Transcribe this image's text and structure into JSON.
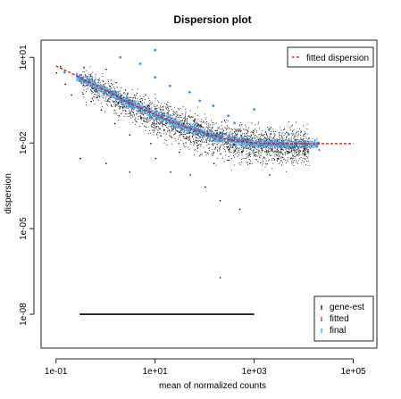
{
  "chart_data": {
    "type": "scatter",
    "title": "Dispersion plot",
    "xlabel": "mean of normalized counts",
    "ylabel": "dispersion",
    "x_scale": "log10",
    "y_scale": "log10",
    "xlim": [
      0.05,
      300000
    ],
    "ylim": [
      6.5e-10,
      40
    ],
    "x_ticks": [
      {
        "value": 0.1,
        "label": "1e-01"
      },
      {
        "value": 10,
        "label": "1e+01"
      },
      {
        "value": 1000,
        "label": "1e+03"
      },
      {
        "value": 100000,
        "label": "1e+05"
      }
    ],
    "y_ticks": [
      {
        "value": 10,
        "label": "1e+01"
      },
      {
        "value": 0.01,
        "label": "1e-02"
      },
      {
        "value": 1e-05,
        "label": "1e-05"
      },
      {
        "value": 1e-08,
        "label": "1e-08"
      }
    ],
    "colors": {
      "gene_est": "#000000",
      "fitted": "#e0141e",
      "final": "#3b94e0"
    },
    "series": [
      {
        "name": "fitted dispersion",
        "style": "line",
        "points": [
          [
            0.1,
            5.0
          ],
          [
            0.3,
            2.0
          ],
          [
            1,
            0.7
          ],
          [
            3,
            0.25
          ],
          [
            10,
            0.1
          ],
          [
            30,
            0.045
          ],
          [
            100,
            0.022
          ],
          [
            300,
            0.013
          ],
          [
            1000,
            0.01
          ],
          [
            3000,
            0.0095
          ],
          [
            10000,
            0.0095
          ],
          [
            50000,
            0.0095
          ],
          [
            100000,
            0.0095
          ]
        ]
      },
      {
        "name": "gene-est",
        "style": "points",
        "points": [
          [
            0.1,
            3.0
          ],
          [
            0.12,
            5.0
          ],
          [
            0.15,
            1.2
          ],
          [
            0.2,
            0.5
          ],
          [
            0.3,
            2.5
          ],
          [
            0.5,
            0.3
          ],
          [
            0.8,
            0.15
          ],
          [
            1,
            4.0
          ],
          [
            1.5,
            0.05
          ],
          [
            2,
            0.5
          ],
          [
            3,
            0.02
          ],
          [
            5,
            0.08
          ],
          [
            5,
            0.3
          ],
          [
            8,
            0.01
          ],
          [
            10,
            0.003
          ],
          [
            15,
            0.03
          ],
          [
            20,
            0.001
          ],
          [
            30,
            0.005
          ],
          [
            50,
            0.0008
          ],
          [
            70,
            0.02
          ],
          [
            100,
            0.0003
          ],
          [
            100,
            0.005
          ],
          [
            150,
            0.002
          ],
          [
            200,
            0.0001
          ],
          [
            300,
            0.006
          ],
          [
            500,
            5e-05
          ],
          [
            800,
            0.002
          ],
          [
            1000,
            0.004
          ],
          [
            2000,
            0.0008
          ],
          [
            3000,
            0.003
          ],
          [
            5000,
            0.005
          ],
          [
            10000,
            0.004
          ],
          [
            20000,
            0.006
          ],
          [
            200,
            2e-07
          ],
          [
            0.3,
            0.003
          ],
          [
            1,
            0.002
          ],
          [
            3,
            0.001
          ]
        ],
        "floor_band": {
          "y": 1e-08,
          "x_range": [
            0.3,
            1000
          ]
        }
      },
      {
        "name": "final",
        "style": "points",
        "points": [
          [
            0.15,
            3.0
          ],
          [
            0.3,
            1.5
          ],
          [
            1,
            0.6
          ],
          [
            2,
            10
          ],
          [
            3,
            0.2
          ],
          [
            5,
            6
          ],
          [
            8,
            0.08
          ],
          [
            10,
            18
          ],
          [
            10,
            2
          ],
          [
            20,
            1
          ],
          [
            30,
            0.04
          ],
          [
            50,
            0.6
          ],
          [
            80,
            0.3
          ],
          [
            100,
            0.02
          ],
          [
            150,
            0.2
          ],
          [
            200,
            0.015
          ],
          [
            300,
            0.09
          ],
          [
            400,
            0.05
          ],
          [
            600,
            0.011
          ],
          [
            1000,
            0.15
          ],
          [
            1000,
            0.01
          ],
          [
            2000,
            0.03
          ],
          [
            3000,
            0.009
          ],
          [
            5000,
            0.02
          ],
          [
            10000,
            0.009
          ],
          [
            20000,
            0.01
          ]
        ]
      }
    ],
    "legends": [
      {
        "position": "top-right",
        "entries": [
          {
            "label": "fitted dispersion",
            "series": "fitted dispersion",
            "color": "#e0141e"
          }
        ]
      },
      {
        "position": "bottom-right",
        "entries": [
          {
            "label": "gene-est",
            "color": "#000000"
          },
          {
            "label": "fitted",
            "color": "#e0141e"
          },
          {
            "label": "final",
            "color": "#3b94e0"
          }
        ]
      }
    ]
  }
}
